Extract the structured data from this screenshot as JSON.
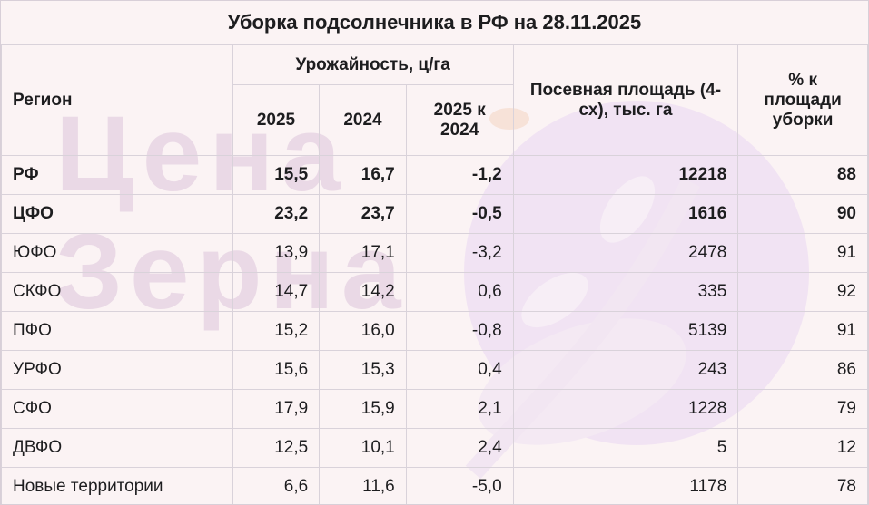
{
  "title": "Уборка подсолнечника в РФ на 28.11.2025",
  "watermark": {
    "line1": "Цена",
    "line2": "Зерна"
  },
  "headers": {
    "region": "Регион",
    "yield_group": "Урожайность, ц/га",
    "y2025": "2025",
    "y2024": "2024",
    "diff": "2025 к 2024",
    "area": "Посевная площадь (4-сх), тыс. га",
    "pct": "% к площади уборки"
  },
  "rows": [
    {
      "region": "РФ",
      "y2025": "15,5",
      "y2024": "16,7",
      "diff": "-1,2",
      "area": "12218",
      "pct": "88",
      "bold": true
    },
    {
      "region": "ЦФО",
      "y2025": "23,2",
      "y2024": "23,7",
      "diff": "-0,5",
      "area": "1616",
      "pct": "90",
      "bold": true
    },
    {
      "region": "ЮФО",
      "y2025": "13,9",
      "y2024": "17,1",
      "diff": "-3,2",
      "area": "2478",
      "pct": "91"
    },
    {
      "region": "СКФО",
      "y2025": "14,7",
      "y2024": "14,2",
      "diff": "0,6",
      "area": "335",
      "pct": "92"
    },
    {
      "region": "ПФО",
      "y2025": "15,2",
      "y2024": "16,0",
      "diff": "-0,8",
      "area": "5139",
      "pct": "91"
    },
    {
      "region": "УРФО",
      "y2025": "15,6",
      "y2024": "15,3",
      "diff": "0,4",
      "area": "243",
      "pct": "86"
    },
    {
      "region": "СФО",
      "y2025": "17,9",
      "y2024": "15,9",
      "diff": "2,1",
      "area": "1228",
      "pct": "79"
    },
    {
      "region": "ДВФО",
      "y2025": "12,5",
      "y2024": "10,1",
      "diff": "2,4",
      "area": "5",
      "pct": "12"
    },
    {
      "region": "Новые территории",
      "y2025": "6,6",
      "y2024": "11,6",
      "diff": "-5,0",
      "area": "1178",
      "pct": "78"
    }
  ],
  "colors": {
    "background": "#fbf3f4",
    "watermark": "#ead9e6",
    "text": "#1d1d1f"
  }
}
